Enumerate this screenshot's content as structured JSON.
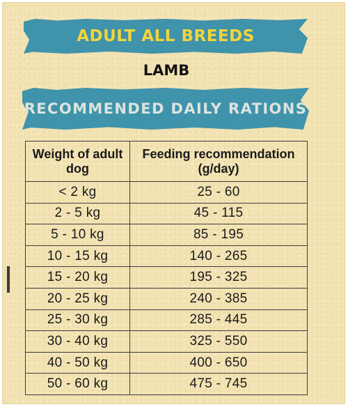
{
  "banner_top": "ADULT ALL BREEDS",
  "flavor": "LAMB",
  "banner_sub": "RECOMMENDED DAILY RATIONS",
  "table": {
    "headers": [
      "Weight of adult dog",
      "Feeding recommendation (g/day)"
    ],
    "rows": [
      [
        "< 2 kg",
        "25 - 60"
      ],
      [
        "2 - 5 kg",
        "45 - 115"
      ],
      [
        "5 - 10 kg",
        "85 - 195"
      ],
      [
        "10 - 15 kg",
        "140 - 265"
      ],
      [
        "15 - 20 kg",
        "195 - 325"
      ],
      [
        "20 - 25 kg",
        "240 - 385"
      ],
      [
        "25 - 30 kg",
        "285 - 445"
      ],
      [
        "30 - 40 kg",
        "325 - 550"
      ],
      [
        "40 - 50 kg",
        "400 - 650"
      ],
      [
        "50 - 60 kg",
        "475 - 745"
      ]
    ]
  },
  "colors": {
    "banner": "#3f93ab",
    "banner_title_text": "#f3d43b",
    "banner_sub_text": "#dce4de",
    "background": "#f3e3b3"
  }
}
